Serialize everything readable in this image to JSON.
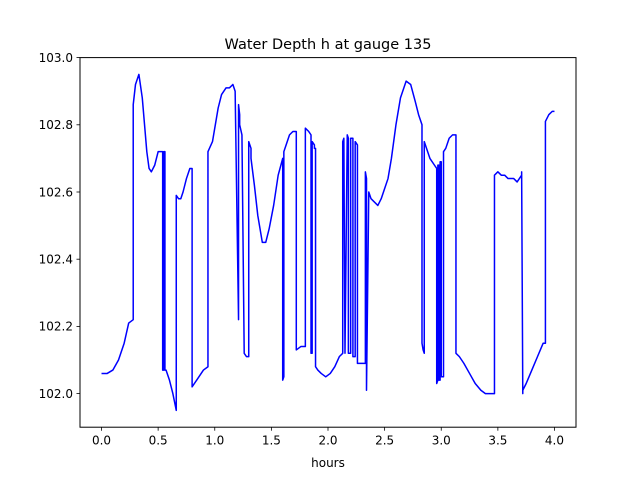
{
  "chart_data": {
    "type": "line",
    "title": "Water Depth h at gauge 135",
    "xlabel": "hours",
    "ylabel": "",
    "xlim": [
      -0.19,
      4.19
    ],
    "ylim": [
      101.9,
      103.0
    ],
    "xticks": [
      0.0,
      0.5,
      1.0,
      1.5,
      2.0,
      2.5,
      3.0,
      3.5,
      4.0
    ],
    "xtick_labels": [
      "0.0",
      "0.5",
      "1.0",
      "1.5",
      "2.0",
      "2.5",
      "3.0",
      "3.5",
      "4.0"
    ],
    "yticks": [
      102.0,
      102.2,
      102.4,
      102.6,
      102.8,
      103.0
    ],
    "ytick_labels": [
      "102.0",
      "102.2",
      "102.4",
      "102.6",
      "102.8",
      "103.0"
    ],
    "grid": false,
    "line_color": "#0000ff",
    "series": [
      {
        "name": "",
        "x": [
          0.0,
          0.05,
          0.1,
          0.15,
          0.2,
          0.24,
          0.28,
          0.28,
          0.3,
          0.33,
          0.36,
          0.38,
          0.4,
          0.42,
          0.44,
          0.47,
          0.5,
          0.54,
          0.54,
          0.55,
          0.55,
          0.56,
          0.56,
          0.57,
          0.6,
          0.63,
          0.66,
          0.66,
          0.68,
          0.7,
          0.72,
          0.75,
          0.78,
          0.8,
          0.8,
          0.84,
          0.9,
          0.94,
          0.94,
          0.98,
          1.0,
          1.03,
          1.06,
          1.1,
          1.13,
          1.16,
          1.18,
          1.21,
          1.21,
          1.22,
          1.22,
          1.24,
          1.26,
          1.28,
          1.3,
          1.3,
          1.32,
          1.32,
          1.35,
          1.38,
          1.42,
          1.45,
          1.48,
          1.52,
          1.56,
          1.6,
          1.6,
          1.61,
          1.61,
          1.63,
          1.66,
          1.69,
          1.72,
          1.72,
          1.76,
          1.77,
          1.8,
          1.8,
          1.83,
          1.85,
          1.85,
          1.86,
          1.86,
          1.88,
          1.88,
          1.89,
          1.89,
          1.91,
          1.94,
          1.98,
          2.02,
          2.06,
          2.1,
          2.13,
          2.13,
          2.14,
          2.14,
          2.15,
          2.15,
          2.17,
          2.17,
          2.18,
          2.18,
          2.2,
          2.2,
          2.22,
          2.22,
          2.24,
          2.24,
          2.26,
          2.26,
          2.28,
          2.31,
          2.33,
          2.33,
          2.34,
          2.34,
          2.36,
          2.38,
          2.41,
          2.44,
          2.47,
          2.5,
          2.53,
          2.56,
          2.6,
          2.64,
          2.69,
          2.73,
          2.77,
          2.8,
          2.83,
          2.83,
          2.84,
          2.85,
          2.85,
          2.86,
          2.9,
          2.94,
          2.96,
          2.96,
          2.97,
          2.97,
          2.98,
          2.98,
          2.99,
          2.99,
          3.0,
          3.0,
          3.02,
          3.02,
          3.04,
          3.07,
          3.1,
          3.13,
          3.13,
          3.16,
          3.2,
          3.25,
          3.3,
          3.35,
          3.39,
          3.42,
          3.47,
          3.47,
          3.5,
          3.53,
          3.56,
          3.59,
          3.61,
          3.64,
          3.67,
          3.71,
          3.71,
          3.72,
          3.72,
          3.75,
          3.8,
          3.85,
          3.9,
          3.92,
          3.92,
          3.95,
          3.98,
          4.0
        ],
        "y": [
          102.06,
          102.06,
          102.07,
          102.1,
          102.15,
          102.21,
          102.22,
          102.86,
          102.92,
          102.95,
          102.88,
          102.8,
          102.72,
          102.67,
          102.66,
          102.68,
          102.72,
          102.72,
          102.07,
          102.07,
          102.72,
          102.72,
          102.07,
          102.07,
          102.04,
          102.0,
          101.95,
          102.59,
          102.58,
          102.58,
          102.6,
          102.64,
          102.67,
          102.67,
          102.02,
          102.04,
          102.07,
          102.08,
          102.72,
          102.75,
          102.79,
          102.85,
          102.89,
          102.91,
          102.91,
          102.92,
          102.9,
          102.22,
          102.86,
          102.83,
          102.8,
          102.77,
          102.12,
          102.11,
          102.11,
          102.75,
          102.73,
          102.7,
          102.62,
          102.53,
          102.45,
          102.45,
          102.49,
          102.56,
          102.65,
          102.7,
          102.04,
          102.05,
          102.72,
          102.74,
          102.77,
          102.78,
          102.78,
          102.13,
          102.14,
          102.14,
          102.14,
          102.79,
          102.78,
          102.77,
          102.12,
          102.12,
          102.75,
          102.74,
          102.73,
          102.73,
          102.08,
          102.07,
          102.06,
          102.05,
          102.06,
          102.08,
          102.11,
          102.12,
          102.75,
          102.76,
          102.76,
          102.12,
          102.12,
          102.77,
          102.77,
          102.76,
          102.12,
          102.12,
          102.76,
          102.76,
          102.11,
          102.11,
          102.75,
          102.74,
          102.09,
          102.09,
          102.09,
          102.09,
          102.66,
          102.64,
          102.01,
          102.6,
          102.58,
          102.57,
          102.56,
          102.58,
          102.61,
          102.64,
          102.7,
          102.8,
          102.88,
          102.93,
          102.92,
          102.87,
          102.83,
          102.8,
          102.15,
          102.13,
          102.12,
          102.75,
          102.74,
          102.7,
          102.68,
          102.67,
          102.03,
          102.04,
          102.68,
          102.68,
          102.04,
          102.04,
          102.69,
          102.69,
          102.05,
          102.05,
          102.72,
          102.73,
          102.76,
          102.77,
          102.77,
          102.12,
          102.11,
          102.09,
          102.06,
          102.03,
          102.01,
          102.0,
          102.0,
          102.0,
          102.65,
          102.66,
          102.65,
          102.65,
          102.64,
          102.64,
          102.64,
          102.63,
          102.65,
          102.66,
          102.0,
          102.01,
          102.03,
          102.07,
          102.11,
          102.15,
          102.15,
          102.81,
          102.83,
          102.84,
          102.84
        ]
      }
    ]
  }
}
